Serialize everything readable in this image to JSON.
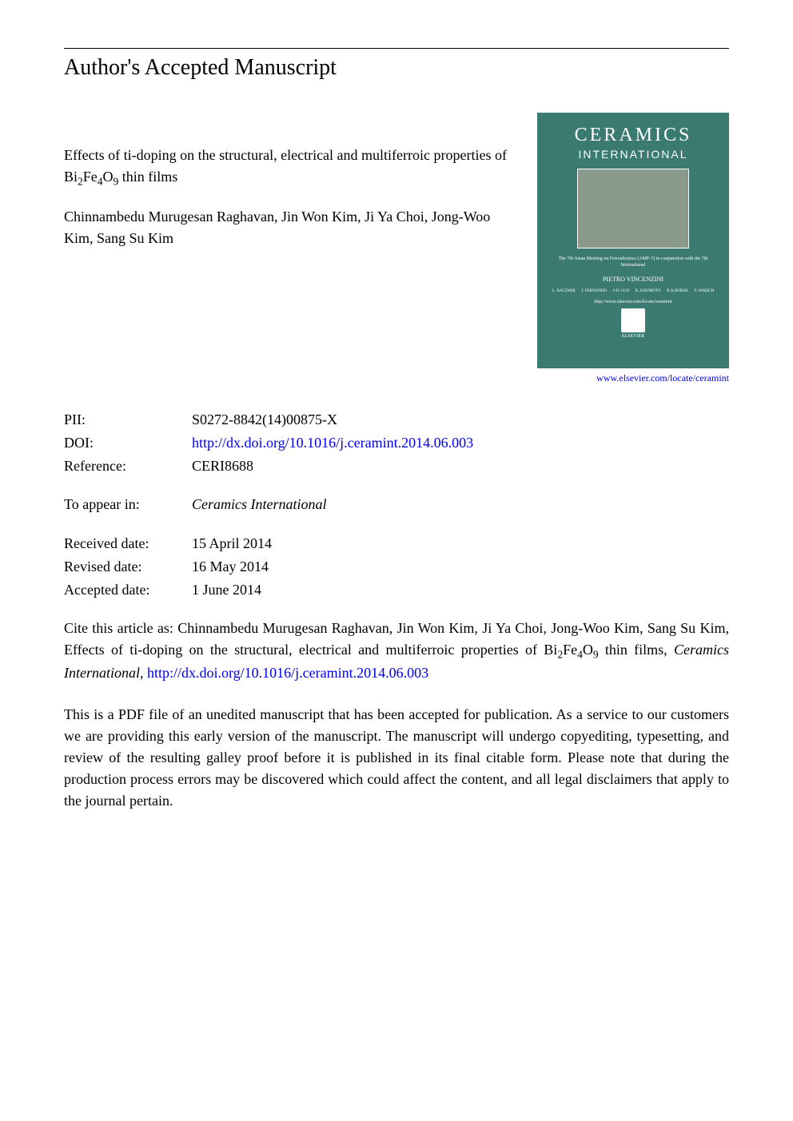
{
  "heading": "Author's Accepted Manuscript",
  "article": {
    "title_prefix": "Effects of ti-doping on the structural, electrical and multiferroic properties of Bi",
    "title_sub1": "2",
    "title_mid1": "Fe",
    "title_sub2": "4",
    "title_mid2": "O",
    "title_sub3": "9",
    "title_suffix": " thin films",
    "authors": "Chinnambedu Murugesan Raghavan, Jin Won Kim, Ji Ya Choi, Jong-Woo Kim, Sang Su Kim"
  },
  "journal_cover": {
    "title": "CERAMICS",
    "subtitle": "INTERNATIONAL",
    "editor_name": "PIETRO VINCENZINI",
    "url_text": "http://www.elsevier.com/locate/ceramint",
    "publisher": "ELSEVIER"
  },
  "journal_url": "www.elsevier.com/locate/ceramint",
  "metadata": {
    "pii_label": "PII:",
    "pii_value": "S0272-8842(14)00875-X",
    "doi_label": "DOI:",
    "doi_value": "http://dx.doi.org/10.1016/j.ceramint.2014.06.003",
    "reference_label": "Reference:",
    "reference_value": "CERI8688",
    "appear_label": "To appear in:",
    "appear_value": "Ceramics International",
    "received_label": "Received date:",
    "received_value": "15 April 2014",
    "revised_label": "Revised date:",
    "revised_value": "16 May 2014",
    "accepted_label": "Accepted date:",
    "accepted_value": "1 June 2014"
  },
  "citation": {
    "prefix": "Cite this article as: Chinnambedu Murugesan Raghavan, Jin Won Kim, Ji Ya Choi, Jong-Woo Kim, Sang Su Kim, Effects of ti-doping on the structural, electrical and multiferroic properties of Bi",
    "sub1": "2",
    "mid1": "Fe",
    "sub2": "4",
    "mid2": "O",
    "sub3": "9",
    "suffix": " thin films, ",
    "journal": "Ceramics International,",
    "link_text": "http://dx.doi.org/10.1016/j.ceramint.2014.06.003"
  },
  "disclaimer": "This is a PDF file of an unedited manuscript that has been accepted for publication. As a service to our customers we are providing this early version of the manuscript. The manuscript will undergo copyediting, typesetting, and review of the resulting galley proof before it is published in its final citable form. Please note that during the production process errors may be discovered which could affect the content, and all legal disclaimers that apply to the journal pertain."
}
